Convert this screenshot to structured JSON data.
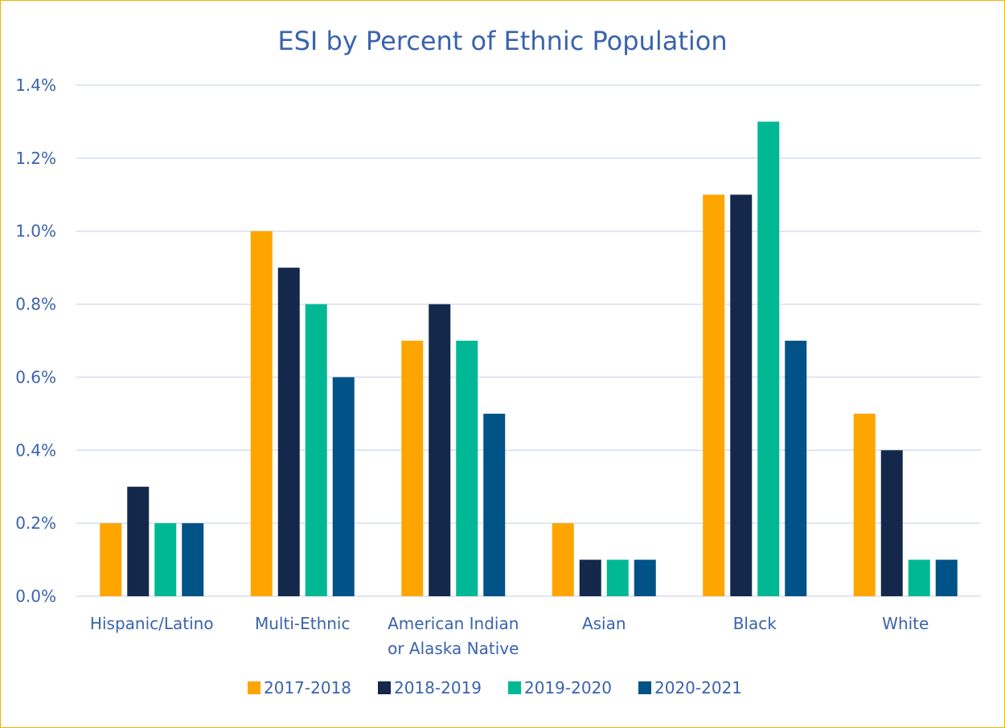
{
  "chart_data": {
    "type": "bar",
    "title": "ESI by Percent of Ethnic Population",
    "xlabel": "",
    "ylabel": "",
    "ylim": [
      0,
      1.4
    ],
    "yticks": [
      0.0,
      0.2,
      0.4,
      0.6,
      0.8,
      1.0,
      1.2,
      1.4
    ],
    "ytick_labels": [
      "0.0%",
      "0.2%",
      "0.4%",
      "0.6%",
      "0.8%",
      "1.0%",
      "1.2%",
      "1.4%"
    ],
    "grid": true,
    "legend_position": "bottom",
    "categories": [
      [
        "Hispanic/Latino"
      ],
      [
        "Multi-Ethnic"
      ],
      [
        "American Indian",
        "or Alaska Native"
      ],
      [
        "Asian"
      ],
      [
        "Black"
      ],
      [
        "White"
      ]
    ],
    "series": [
      {
        "name": "2017-2018",
        "color": "#ffa500",
        "values": [
          0.2,
          1.0,
          0.7,
          0.2,
          1.1,
          0.5
        ]
      },
      {
        "name": "2018-2019",
        "color": "#14284b",
        "values": [
          0.3,
          0.9,
          0.8,
          0.1,
          1.1,
          0.4
        ]
      },
      {
        "name": "2019-2020",
        "color": "#00b894",
        "values": [
          0.2,
          0.8,
          0.7,
          0.1,
          1.3,
          0.1
        ]
      },
      {
        "name": "2020-2021",
        "color": "#005287",
        "values": [
          0.2,
          0.6,
          0.5,
          0.1,
          0.7,
          0.1
        ]
      }
    ],
    "colors": {
      "text": "#3a63ad",
      "grid": "#d6def0",
      "border": "#f0b400"
    }
  }
}
